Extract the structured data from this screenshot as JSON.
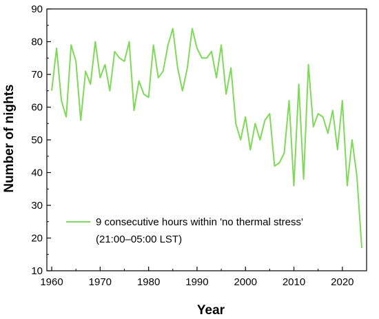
{
  "chart_data": {
    "type": "line",
    "title": "",
    "xlabel": "Year",
    "ylabel": "Number of nights",
    "xlim": [
      1959,
      2025
    ],
    "ylim": [
      10,
      90
    ],
    "x_ticks": [
      1960,
      1970,
      1980,
      1990,
      2000,
      2010,
      2020
    ],
    "y_ticks": [
      10,
      20,
      30,
      40,
      50,
      60,
      70,
      80,
      90
    ],
    "grid": false,
    "legend_position": "bottom-left",
    "series": [
      {
        "name": "9 consecutive hours within 'no thermal stress'",
        "name_line2": "(21:00–05:00 LST)",
        "color": "#7ed957",
        "x": [
          1960,
          1961,
          1962,
          1963,
          1964,
          1965,
          1966,
          1967,
          1968,
          1969,
          1970,
          1971,
          1972,
          1973,
          1974,
          1975,
          1976,
          1977,
          1978,
          1979,
          1980,
          1981,
          1982,
          1983,
          1984,
          1985,
          1986,
          1987,
          1988,
          1989,
          1990,
          1991,
          1992,
          1993,
          1994,
          1995,
          1996,
          1997,
          1998,
          1999,
          2000,
          2001,
          2002,
          2003,
          2004,
          2005,
          2006,
          2007,
          2008,
          2009,
          2010,
          2011,
          2012,
          2013,
          2014,
          2015,
          2016,
          2017,
          2018,
          2019,
          2020,
          2021,
          2022,
          2023,
          2024
        ],
        "values": [
          65,
          78,
          62,
          57,
          79,
          74,
          56,
          71,
          67,
          80,
          69,
          73,
          65,
          77,
          75,
          74,
          80,
          59,
          68,
          64,
          63,
          79,
          69,
          71,
          79,
          84,
          72,
          65,
          72,
          84,
          78,
          75,
          75,
          77,
          69,
          79,
          64,
          72,
          55,
          50,
          57,
          47,
          55,
          50,
          56,
          58,
          42,
          43,
          46,
          62,
          36,
          67,
          38,
          73,
          54,
          58,
          57,
          52,
          59,
          47,
          62,
          36,
          50,
          39,
          17
        ]
      }
    ]
  }
}
